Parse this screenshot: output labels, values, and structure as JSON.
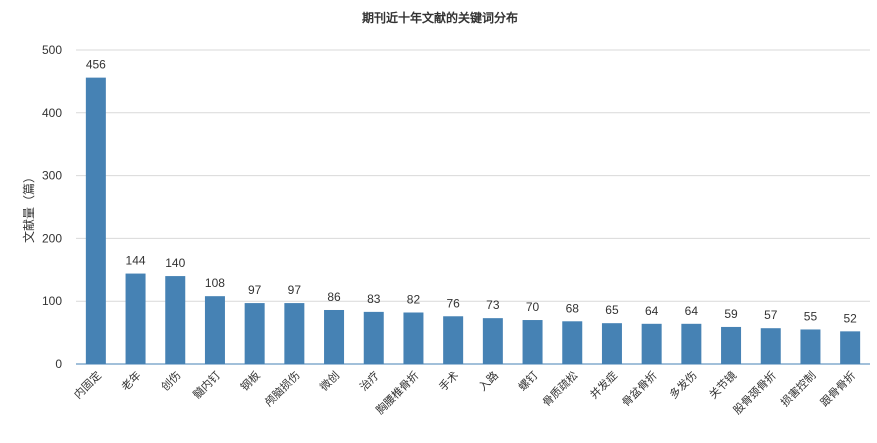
{
  "chart_data": {
    "type": "bar",
    "title": "期刊近十年文献的关键词分布",
    "xlabel": "",
    "ylabel": "文献量（篇）",
    "ylim": [
      0,
      500
    ],
    "yticks": [
      0,
      100,
      200,
      300,
      400,
      500
    ],
    "grid": true,
    "color": "#4682b4",
    "categories": [
      "内固定",
      "老年",
      "创伤",
      "髓内钉",
      "钢板",
      "颅脑损伤",
      "微创",
      "治疗",
      "胸腰椎骨折",
      "手术",
      "入路",
      "螺钉",
      "骨质疏松",
      "并发症",
      "骨盆骨折",
      "多发伤",
      "关节镜",
      "股骨颈骨折",
      "损害控制",
      "跟骨骨折"
    ],
    "values": [
      456,
      144,
      140,
      108,
      97,
      97,
      86,
      83,
      82,
      76,
      73,
      70,
      68,
      65,
      64,
      64,
      59,
      57,
      55,
      52
    ]
  }
}
